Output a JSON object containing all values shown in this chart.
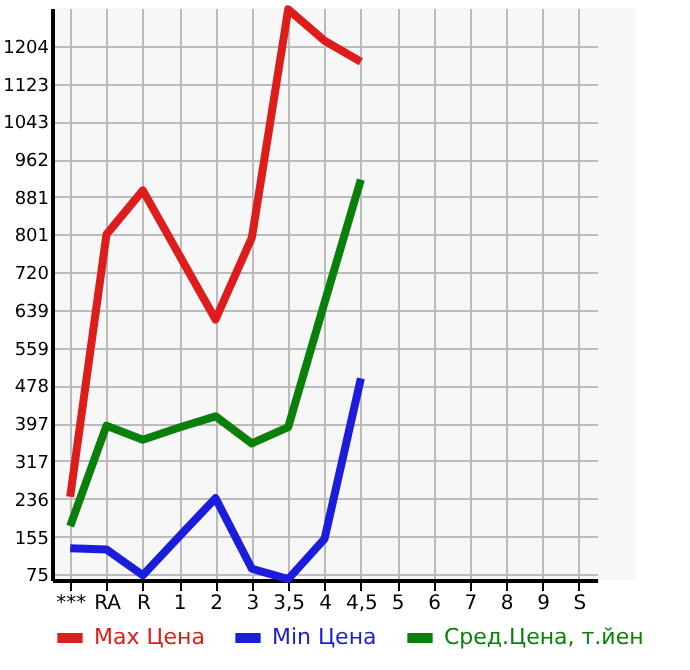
{
  "chart_data": {
    "type": "line",
    "categories": [
      "***",
      "RA",
      "R",
      "1",
      "2",
      "3",
      "3,5",
      "4",
      "4,5",
      "5",
      "6",
      "7",
      "8",
      "9",
      "S"
    ],
    "series": [
      {
        "name": "Max Цена",
        "color": "#dd1c1c",
        "values": [
          240,
          801,
          895,
          757,
          619,
          794,
          1282,
          1215,
          1170,
          null,
          null,
          null,
          null,
          null,
          null
        ]
      },
      {
        "name": "Min Цена",
        "color": "#1c1cdd",
        "values": [
          130,
          127,
          72,
          155,
          237,
          86,
          64,
          150,
          493,
          null,
          null,
          null,
          null,
          null,
          null
        ]
      },
      {
        "name": "Сред.Цена, т.йен",
        "color": "#0a800a",
        "values": [
          177,
          392,
          362,
          388,
          412,
          354,
          389,
          655,
          918,
          null,
          null,
          null,
          null,
          null,
          null
        ]
      }
    ],
    "ylim": [
      62,
      1285
    ],
    "yticks": [
      75,
      155,
      236,
      317,
      397,
      478,
      559,
      639,
      720,
      801,
      881,
      962,
      1043,
      1123,
      1204
    ],
    "grid": true,
    "legend": "bottom",
    "marker": "none",
    "line_style": "solid"
  }
}
